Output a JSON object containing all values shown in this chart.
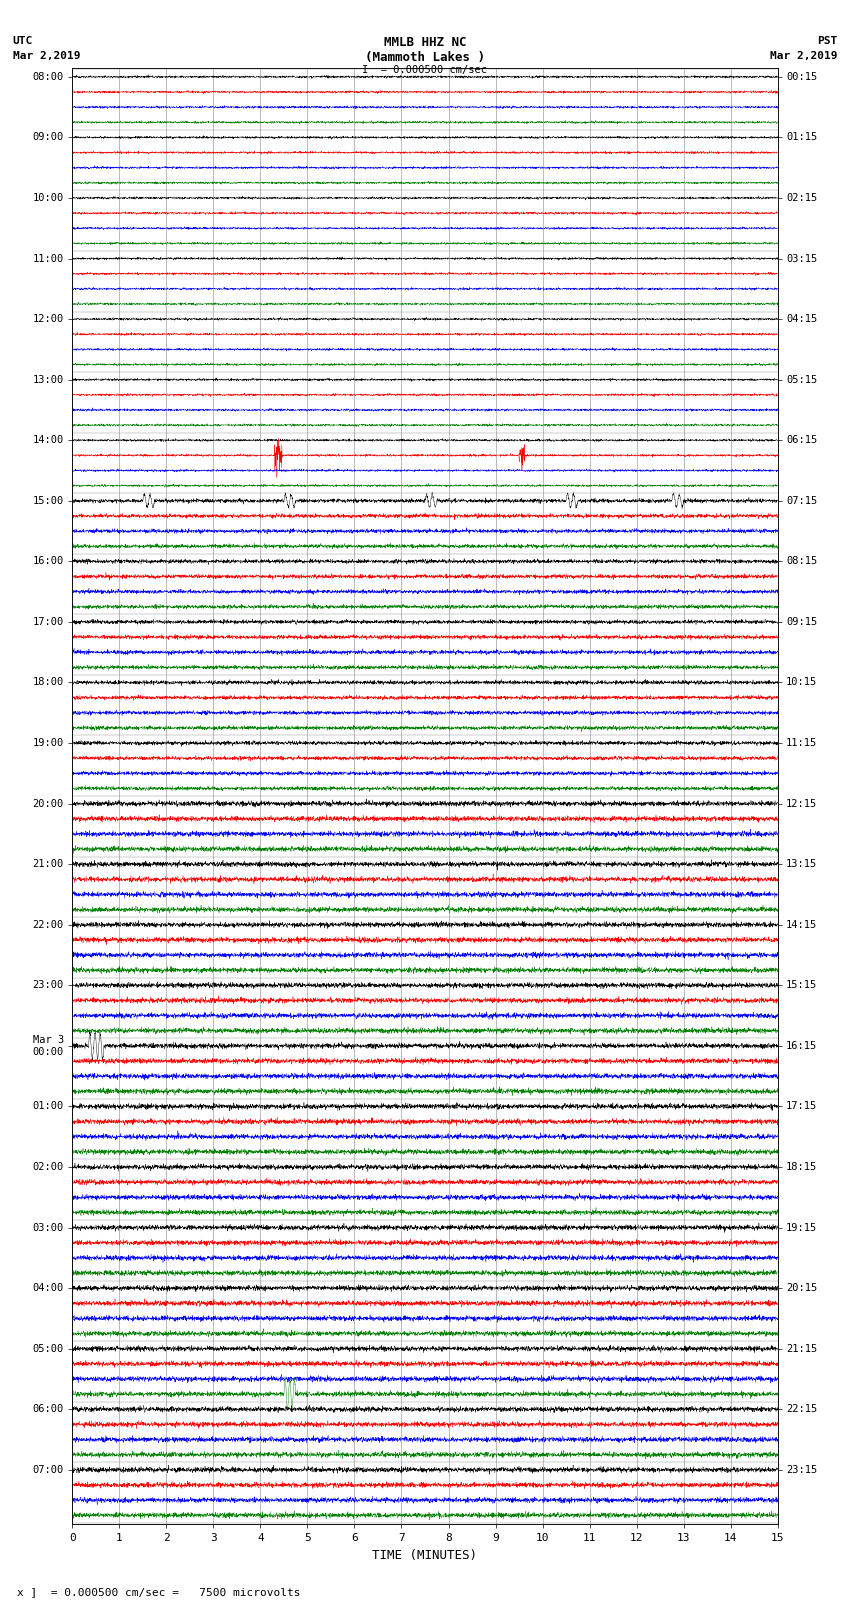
{
  "title_line1": "MMLB HHZ NC",
  "title_line2": "(Mammoth Lakes )",
  "title_line3": "I  = 0.000500 cm/sec",
  "left_header_1": "UTC",
  "left_header_2": "Mar 2,2019",
  "right_header_1": "PST",
  "right_header_2": "Mar 2,2019",
  "xlabel": "TIME (MINUTES)",
  "footer": "x ]  = 0.000500 cm/sec =   7500 microvolts",
  "utc_labels": [
    "08:00",
    "09:00",
    "10:00",
    "11:00",
    "12:00",
    "13:00",
    "14:00",
    "15:00",
    "16:00",
    "17:00",
    "18:00",
    "19:00",
    "20:00",
    "21:00",
    "22:00",
    "23:00",
    "Mar 3\n00:00",
    "01:00",
    "02:00",
    "03:00",
    "04:00",
    "05:00",
    "06:00",
    "07:00"
  ],
  "pst_labels": [
    "00:15",
    "01:15",
    "02:15",
    "03:15",
    "04:15",
    "05:15",
    "06:15",
    "07:15",
    "08:15",
    "09:15",
    "10:15",
    "11:15",
    "12:15",
    "13:15",
    "14:15",
    "15:15",
    "16:15",
    "17:15",
    "18:15",
    "19:15",
    "20:15",
    "21:15",
    "22:15",
    "23:15"
  ],
  "n_hours": 24,
  "traces_per_hour": 4,
  "n_samples": 3600,
  "colors_cycle": [
    "black",
    "red",
    "blue",
    "green"
  ],
  "background_color": "white",
  "line_width": 0.3,
  "base_amplitude": 0.28,
  "grid_color": "#888888",
  "grid_linewidth": 0.4,
  "minute_tick_color": "#888888"
}
